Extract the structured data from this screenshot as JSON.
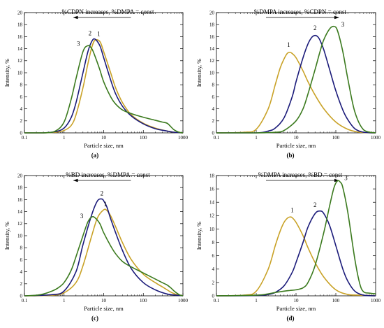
{
  "chart_data": [
    {
      "type": "line",
      "panel": "(a)",
      "annotation": "%CDPN increases, %DMPA = const",
      "arrow_direction": "left",
      "xlabel": "Particle size, nm",
      "ylabel": "Intensity, %",
      "x_scale": "log",
      "xlim": [
        0.1,
        1000
      ],
      "ylim": [
        0,
        20
      ],
      "x_tick_labels": [
        "0.1",
        "1",
        "10",
        "100",
        "1000"
      ],
      "y_tick_labels": [
        "0",
        "2",
        "4",
        "6",
        "8",
        "10",
        "12",
        "14",
        "16",
        "18",
        "20"
      ],
      "series": [
        {
          "name": "1",
          "color": "#C9A227",
          "x": [
            0.1,
            0.3,
            0.6,
            1,
            1.5,
            2,
            3,
            4,
            5,
            6,
            8,
            10,
            15,
            20,
            30,
            50,
            100,
            200,
            400,
            600,
            1000
          ],
          "y": [
            0,
            0,
            0.1,
            0.4,
            1.2,
            3,
            7.5,
            11.5,
            14.2,
            15.4,
            15.2,
            13.5,
            10,
            7.5,
            5,
            3,
            1.6,
            0.8,
            0.3,
            0.1,
            0
          ]
        },
        {
          "name": "2",
          "color": "#1B1B7A",
          "x": [
            0.1,
            0.3,
            0.6,
            1,
            1.5,
            2,
            3,
            4,
            5,
            6,
            8,
            10,
            15,
            20,
            30,
            50,
            100,
            200,
            400,
            600,
            1000
          ],
          "y": [
            0,
            0,
            0.2,
            0.8,
            2.5,
            5,
            10,
            13.5,
            15.2,
            15.6,
            14.5,
            12.5,
            8.8,
            6.5,
            4.4,
            2.8,
            1.5,
            0.7,
            0.3,
            0.1,
            0
          ]
        },
        {
          "name": "3",
          "color": "#3B7A1E",
          "x": [
            0.1,
            0.3,
            0.6,
            1,
            1.5,
            2,
            3,
            4,
            5,
            6,
            8,
            10,
            15,
            20,
            30,
            50,
            100,
            200,
            300,
            400,
            500,
            600,
            800,
            1000
          ],
          "y": [
            0,
            0,
            0.3,
            1.8,
            5.5,
            9,
            13.5,
            14.5,
            14,
            12.8,
            10.5,
            8.5,
            6,
            4.8,
            3.8,
            3.2,
            2.6,
            2.1,
            1.8,
            1.6,
            1,
            0.5,
            0.1,
            0
          ]
        }
      ],
      "curve_labels": [
        {
          "series": "1",
          "text": "1",
          "x": 7.5,
          "y": 16.1
        },
        {
          "series": "2",
          "text": "2",
          "x": 4.5,
          "y": 16.2
        },
        {
          "series": "3",
          "text": "3",
          "x": 2.3,
          "y": 14.5
        }
      ]
    },
    {
      "type": "line",
      "panel": "(b)",
      "annotation": "%DMPA increases, %CDPN = const",
      "arrow_direction": "right",
      "xlabel": "Particle size, nm",
      "ylabel": "Intensity, %",
      "x_scale": "log",
      "xlim": [
        0.1,
        1000
      ],
      "ylim": [
        0,
        20
      ],
      "x_tick_labels": [
        "0.1",
        "1",
        "10",
        "100",
        "1000"
      ],
      "y_tick_labels": [
        "0",
        "2",
        "4",
        "6",
        "8",
        "10",
        "12",
        "14",
        "16",
        "18",
        "20"
      ],
      "series": [
        {
          "name": "1",
          "color": "#C9A227",
          "x": [
            0.1,
            0.5,
            1,
            2,
            3,
            4,
            5,
            6,
            7,
            8,
            10,
            15,
            20,
            30,
            50,
            100,
            200,
            400,
            1000
          ],
          "y": [
            0,
            0.1,
            0.6,
            4,
            8,
            10.8,
            12.3,
            13.2,
            13.4,
            13.2,
            12.5,
            10.3,
            8.5,
            6.3,
            4,
            1.8,
            0.6,
            0.1,
            0
          ]
        },
        {
          "name": "2",
          "color": "#1B1B7A",
          "x": [
            0.1,
            1,
            2,
            3,
            5,
            8,
            10,
            15,
            20,
            25,
            30,
            35,
            40,
            50,
            70,
            100,
            150,
            200,
            300,
            500,
            1000
          ],
          "y": [
            0,
            0,
            0.3,
            0.8,
            2.5,
            6,
            8.5,
            12.5,
            14.8,
            15.9,
            16.2,
            16,
            15.4,
            13.8,
            10.5,
            7,
            3.8,
            2.2,
            0.7,
            0.1,
            0
          ]
        },
        {
          "name": "3",
          "color": "#3B7A1E",
          "x": [
            0.1,
            1,
            3,
            5,
            10,
            15,
            20,
            30,
            40,
            50,
            70,
            90,
            110,
            150,
            200,
            300,
            500,
            1000
          ],
          "y": [
            0,
            0,
            0.1,
            0.4,
            2,
            4,
            6.5,
            10.5,
            13.5,
            15.5,
            17.3,
            17.7,
            17,
            13.5,
            9,
            3.5,
            0.5,
            0
          ]
        }
      ],
      "curve_labels": [
        {
          "series": "1",
          "text": "1",
          "x": 6.5,
          "y": 14.3
        },
        {
          "series": "2",
          "text": "2",
          "x": 30,
          "y": 17.1
        },
        {
          "series": "3",
          "text": "3",
          "x": 150,
          "y": 17.7
        }
      ]
    },
    {
      "type": "line",
      "panel": "(c)",
      "annotation": "%BD increases, %DMPA = const",
      "arrow_direction": "left",
      "xlabel": "Particle size, nm",
      "ylabel": "Intensity, %",
      "x_scale": "log",
      "xlim": [
        0.1,
        1000
      ],
      "ylim": [
        0,
        20
      ],
      "x_tick_labels": [
        "0.1",
        "1",
        "10",
        "100",
        "1000"
      ],
      "y_tick_labels": [
        "0",
        "2",
        "4",
        "6",
        "8",
        "10",
        "12",
        "14",
        "16",
        "18",
        "20"
      ],
      "series": [
        {
          "name": "1",
          "color": "#C9A227",
          "x": [
            0.1,
            0.5,
            1,
            2,
            3,
            5,
            7,
            10,
            12,
            15,
            20,
            30,
            50,
            100,
            200,
            300,
            400,
            500,
            700,
            1000
          ],
          "y": [
            0,
            0.1,
            0.5,
            2.2,
            5,
            10,
            13,
            14.3,
            14.2,
            13.3,
            11.5,
            8.8,
            6,
            3.6,
            2.2,
            1.5,
            1,
            0.6,
            0.2,
            0
          ]
        },
        {
          "name": "2",
          "color": "#1B1B7A",
          "x": [
            0.1,
            0.5,
            1,
            2,
            3,
            5,
            7,
            9,
            10,
            12,
            15,
            20,
            30,
            50,
            100,
            200,
            400,
            700,
            1000
          ],
          "y": [
            0,
            0.2,
            0.8,
            4,
            8.5,
            13.5,
            15.8,
            16.1,
            15.8,
            14.8,
            12.8,
            10.5,
            7.5,
            4.5,
            2.2,
            1,
            0.3,
            0.1,
            0
          ]
        },
        {
          "name": "3",
          "color": "#3B7A1E",
          "x": [
            0.1,
            0.2,
            0.3,
            0.5,
            0.7,
            1,
            1.5,
            2,
            3,
            4,
            5,
            6,
            8,
            10,
            15,
            20,
            30,
            50,
            100,
            200,
            300,
            400,
            500,
            600,
            800,
            1000
          ],
          "y": [
            0,
            0.1,
            0.3,
            0.8,
            1.3,
            2.2,
            4.2,
            6.5,
            10,
            12.3,
            13.1,
            13,
            12,
            10.5,
            8.3,
            7,
            5.7,
            4.8,
            3.8,
            2.8,
            2.2,
            1.8,
            1.3,
            0.8,
            0.2,
            0
          ]
        }
      ],
      "curve_labels": [
        {
          "series": "1",
          "text": "1",
          "x": 11,
          "y": 14.9
        },
        {
          "series": "2",
          "text": "2",
          "x": 9,
          "y": 16.7
        },
        {
          "series": "3",
          "text": "3",
          "x": 2.8,
          "y": 12.9
        }
      ]
    },
    {
      "type": "line",
      "panel": "(d)",
      "annotation": "%DMPA increases, %BD = const",
      "arrow_direction": "right",
      "xlabel": "Particle size, nm",
      "ylabel": "Intensity, %",
      "x_scale": "log",
      "xlim": [
        0.1,
        1000
      ],
      "ylim": [
        0,
        18
      ],
      "x_tick_labels": [
        "0.1",
        "1",
        "10",
        "100",
        "1000"
      ],
      "y_tick_labels": [
        "0",
        "2",
        "4",
        "6",
        "8",
        "10",
        "12",
        "14",
        "16",
        "18"
      ],
      "series": [
        {
          "name": "1",
          "color": "#C9A227",
          "x": [
            0.1,
            0.5,
            1,
            2,
            3,
            4,
            5,
            6,
            7,
            8,
            10,
            15,
            20,
            30,
            50,
            100,
            200,
            400,
            700,
            1000
          ],
          "y": [
            0,
            0.1,
            0.7,
            4,
            7.5,
            9.7,
            11,
            11.6,
            11.8,
            11.7,
            11,
            9,
            7.2,
            5,
            2.8,
            0.9,
            0.2,
            0.1,
            0.05,
            0
          ]
        },
        {
          "name": "2",
          "color": "#1B1B7A",
          "x": [
            0.1,
            1,
            2,
            3,
            5,
            8,
            10,
            15,
            20,
            30,
            40,
            50,
            70,
            100,
            150,
            200,
            300,
            500,
            1000
          ],
          "y": [
            0,
            0.05,
            0.2,
            0.5,
            1.5,
            3.5,
            5,
            8,
            10.3,
            12.3,
            12.7,
            12.3,
            10.5,
            7.5,
            4,
            2.2,
            0.7,
            0.1,
            0
          ]
        },
        {
          "name": "3",
          "color": "#3B7A1E",
          "x": [
            0.1,
            1,
            2,
            3,
            5,
            7,
            10,
            15,
            20,
            30,
            50,
            70,
            90,
            110,
            130,
            150,
            200,
            300,
            400,
            500,
            700,
            1000
          ],
          "y": [
            0,
            0.1,
            0.3,
            0.5,
            0.7,
            0.8,
            0.9,
            1.2,
            2,
            4.5,
            9.5,
            13.5,
            16.2,
            17.2,
            17,
            16.2,
            12.5,
            5.5,
            1.8,
            0.6,
            0.4,
            0.3
          ]
        }
      ],
      "curve_labels": [
        {
          "series": "1",
          "text": "1",
          "x": 8,
          "y": 12.5
        },
        {
          "series": "2",
          "text": "2",
          "x": 30,
          "y": 13.3
        },
        {
          "series": "3",
          "text": "3",
          "x": 180,
          "y": 17.3
        }
      ]
    }
  ]
}
